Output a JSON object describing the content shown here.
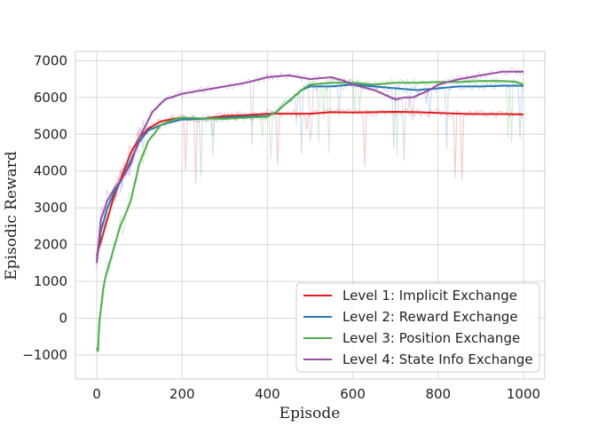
{
  "chart_data": {
    "type": "line",
    "title": "",
    "xlabel": "Episode",
    "ylabel": "Episodic Reward",
    "xlim": [
      -50,
      1050
    ],
    "ylim": [
      -1650,
      7250
    ],
    "xticks": [
      0,
      200,
      400,
      600,
      800,
      1000
    ],
    "yticks": [
      -1000,
      0,
      1000,
      2000,
      3000,
      4000,
      5000,
      6000,
      7000
    ],
    "grid": true,
    "legend_position": "lower-right",
    "series": [
      {
        "name": "Level 1: Implicit Exchange",
        "color": "#e31a1c",
        "x": [
          0,
          10,
          25,
          40,
          60,
          80,
          100,
          120,
          150,
          180,
          200,
          250,
          300,
          350,
          400,
          450,
          500,
          550,
          600,
          650,
          700,
          750,
          800,
          850,
          900,
          950,
          1000
        ],
        "y": [
          1700,
          2100,
          2700,
          3300,
          3900,
          4500,
          4900,
          5150,
          5350,
          5420,
          5450,
          5430,
          5500,
          5520,
          5560,
          5560,
          5560,
          5600,
          5590,
          5600,
          5610,
          5600,
          5580,
          5560,
          5550,
          5550,
          5540
        ]
      },
      {
        "name": "Level 2: Reward Exchange",
        "color": "#2878b5",
        "x": [
          0,
          10,
          25,
          40,
          60,
          80,
          100,
          120,
          150,
          180,
          200,
          250,
          300,
          350,
          400,
          420,
          440,
          460,
          480,
          500,
          550,
          600,
          650,
          700,
          750,
          800,
          850,
          900,
          950,
          1000
        ],
        "y": [
          1600,
          2400,
          3000,
          3400,
          3800,
          4300,
          4800,
          5100,
          5250,
          5350,
          5400,
          5420,
          5450,
          5480,
          5500,
          5600,
          5800,
          6000,
          6200,
          6300,
          6300,
          6350,
          6300,
          6250,
          6200,
          6250,
          6300,
          6300,
          6320,
          6320
        ]
      },
      {
        "name": "Level 3: Position Exchange",
        "color": "#4daf4a",
        "x": [
          0,
          3,
          6,
          10,
          15,
          20,
          30,
          40,
          55,
          70,
          80,
          100,
          120,
          150,
          180,
          200,
          250,
          300,
          350,
          400,
          420,
          450,
          480,
          500,
          550,
          600,
          650,
          700,
          750,
          800,
          850,
          900,
          950,
          980,
          1000
        ],
        "y": [
          -800,
          -900,
          -100,
          300,
          800,
          1100,
          1500,
          1900,
          2500,
          2900,
          3200,
          4200,
          4800,
          5250,
          5400,
          5450,
          5430,
          5420,
          5450,
          5480,
          5600,
          5900,
          6200,
          6350,
          6400,
          6400,
          6350,
          6400,
          6400,
          6420,
          6420,
          6450,
          6450,
          6430,
          6350
        ]
      },
      {
        "name": "Level 4: State Info Exchange",
        "color": "#984ea3",
        "x": [
          0,
          10,
          25,
          40,
          60,
          80,
          100,
          130,
          160,
          200,
          250,
          300,
          350,
          400,
          450,
          500,
          550,
          580,
          600,
          650,
          680,
          700,
          720,
          740,
          760,
          780,
          800,
          850,
          900,
          950,
          1000
        ],
        "y": [
          1500,
          2700,
          3200,
          3500,
          3800,
          4200,
          4900,
          5600,
          5950,
          6100,
          6200,
          6300,
          6400,
          6550,
          6600,
          6500,
          6550,
          6450,
          6350,
          6200,
          6050,
          5950,
          6000,
          6000,
          6100,
          6200,
          6350,
          6500,
          6600,
          6700,
          6700
        ]
      }
    ]
  }
}
